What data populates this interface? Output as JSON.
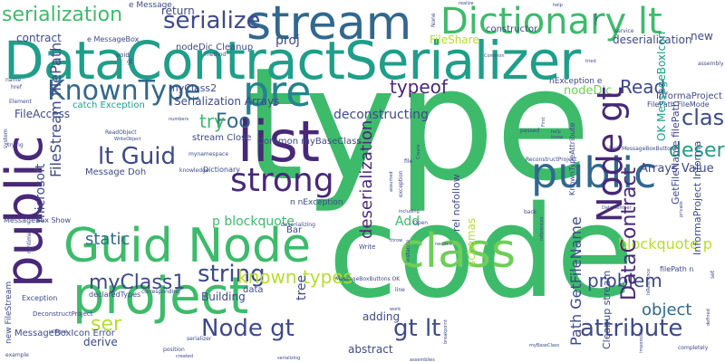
{
  "palette": {
    "green": "#3dbb6b",
    "teal": "#1f9e89",
    "blue": "#31688e",
    "slate": "#3e4989",
    "purple": "#482878",
    "lime": "#b5de2b",
    "yellowgreen": "#6ece58",
    "cyan": "#26828e"
  },
  "words": [
    {
      "text": "type"
    },
    {
      "text": "code"
    },
    {
      "text": "DataContractSerializer"
    },
    {
      "text": "stream"
    },
    {
      "text": "Dictionary lt"
    },
    {
      "text": "Guid Node"
    },
    {
      "text": "project"
    },
    {
      "text": "class"
    },
    {
      "text": "list"
    },
    {
      "text": "pre"
    },
    {
      "text": "public"
    },
    {
      "text": "strong"
    },
    {
      "text": "Node gt"
    },
    {
      "text": "gt lt"
    },
    {
      "text": "attribute"
    },
    {
      "text": "serialization"
    },
    {
      "text": "serialize"
    },
    {
      "text": "KnownType"
    },
    {
      "text": "Foo"
    },
    {
      "text": "lt Guid"
    },
    {
      "text": "myClass1"
    },
    {
      "text": "typeof"
    },
    {
      "text": "string"
    },
    {
      "text": "known types"
    },
    {
      "text": "ser"
    },
    {
      "text": "problem"
    },
    {
      "text": "object"
    },
    {
      "text": "deserialize"
    },
    {
      "text": "classes"
    },
    {
      "text": "Read"
    },
    {
      "text": "try"
    },
    {
      "text": "static"
    },
    {
      "text": "Add"
    },
    {
      "text": "p blockquote"
    },
    {
      "text": "blockquote p"
    },
    {
      "text": "DataContract"
    },
    {
      "text": "Informa"
    },
    {
      "text": "proj"
    },
    {
      "text": "deserialization"
    },
    {
      "text": "contract"
    },
    {
      "text": "return"
    },
    {
      "text": "FileShare"
    },
    {
      "text": "constructor"
    },
    {
      "text": "FileAccess"
    },
    {
      "text": "Serialization Arrays"
    },
    {
      "text": "myClass2"
    },
    {
      "text": "nodeDic"
    },
    {
      "text": "Arrays Value"
    },
    {
      "text": "adding"
    },
    {
      "text": "Building"
    },
    {
      "text": "derive"
    },
    {
      "text": "abstract"
    },
    {
      "text": "tree"
    },
    {
      "text": "new"
    },
    {
      "text": "data"
    },
    {
      "text": "Bar"
    },
    {
      "text": "Path GetFileName"
    },
    {
      "text": "Cleanup stream"
    },
    {
      "text": "myComplexResult"
    },
    {
      "text": "FileStream filePath"
    },
    {
      "text": "microsoft"
    },
    {
      "text": "schemas"
    },
    {
      "text": "catch Exception"
    },
    {
      "text": "InformaProject Informa"
    },
    {
      "text": "FilePath FileMode"
    },
    {
      "text": "stream Close"
    },
    {
      "text": "Common myBaseClass"
    },
    {
      "text": "Message Doh"
    },
    {
      "text": "nodeDic Cleanup"
    },
    {
      "text": "e Message"
    },
    {
      "text": "e MessageBox"
    },
    {
      "text": "filePath n"
    },
    {
      "text": "rel nofollow"
    },
    {
      "text": "OK MessageBoxIcon"
    },
    {
      "text": "GetFileName filePath"
    },
    {
      "text": "nException e"
    },
    {
      "text": "n nException"
    },
    {
      "text": "new FileStream"
    },
    {
      "text": "MessageBoxIcon Error"
    },
    {
      "text": "MessageBox Show"
    },
    {
      "text": "declaredTypes"
    },
    {
      "text": "Exception"
    },
    {
      "text": "KnownTypeAttribute"
    },
    {
      "text": "Doh MessageBoxButtons"
    },
    {
      "text": "MessageBoxButtons OK"
    },
    {
      "text": "DeconstructProject"
    },
    {
      "text": "ReconstructProject"
    },
    {
      "text": "deconstructing"
    },
    {
      "text": "void"
    },
    {
      "text": "gt"
    },
    {
      "text": "method"
    },
    {
      "text": "name"
    },
    {
      "text": "href"
    },
    {
      "text": "Element"
    },
    {
      "text": "system"
    },
    {
      "text": "trying"
    },
    {
      "text": "deserializing"
    },
    {
      "text": "ReadObject"
    },
    {
      "text": "WriteObject"
    },
    {
      "text": "mynamespace"
    },
    {
      "text": "knowledge"
    },
    {
      "text": "Dictionary"
    },
    {
      "text": "Create"
    },
    {
      "text": "file"
    },
    {
      "text": "exception"
    },
    {
      "text": "including"
    },
    {
      "text": "instance"
    },
    {
      "text": "runtime"
    },
    {
      "text": "Write"
    },
    {
      "text": "Open"
    },
    {
      "text": "throw"
    },
    {
      "text": "line"
    },
    {
      "text": "breakpoint"
    },
    {
      "text": "corresponding"
    },
    {
      "text": "unique"
    },
    {
      "text": "example"
    },
    {
      "text": "serializer"
    },
    {
      "text": "position"
    },
    {
      "text": "created"
    },
    {
      "text": "set"
    },
    {
      "text": "completely"
    },
    {
      "text": "assembly"
    },
    {
      "text": "defined"
    },
    {
      "text": "service"
    },
    {
      "text": "realize"
    },
    {
      "text": "help"
    },
    {
      "text": "None"
    },
    {
      "text": "Common"
    },
    {
      "text": "passed"
    },
    {
      "text": "back"
    },
    {
      "text": "First"
    },
    {
      "text": "know"
    },
    {
      "text": "help"
    },
    {
      "text": "tried"
    },
    {
      "text": "maps"
    },
    {
      "text": "references"
    },
    {
      "text": "needed"
    },
    {
      "text": "private"
    },
    {
      "text": "DataMember"
    },
    {
      "text": "IsReference"
    },
    {
      "text": "impossible"
    },
    {
      "text": "work"
    },
    {
      "text": "assemblies"
    },
    {
      "text": "myBaseClass"
    },
    {
      "text": "numbers"
    },
    {
      "text": "assumed"
    },
    {
      "text": "serializing"
    },
    {
      "text": "Building"
    },
    {
      "text": "works"
    }
  ]
}
